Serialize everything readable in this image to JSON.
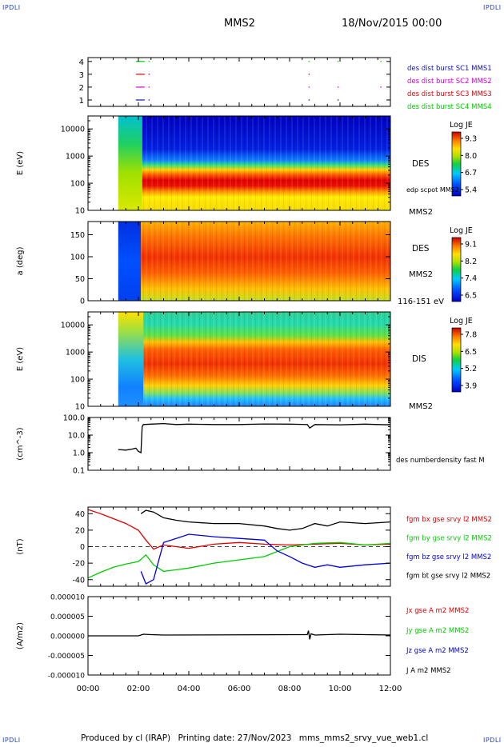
{
  "corners": {
    "tl": "IPDLI",
    "tr": "IPDLI",
    "bl": "IPDLI",
    "br": "IPDLI"
  },
  "header": {
    "spacecraft": "MMS2",
    "date": "18/Nov/2015 00:00"
  },
  "footer": {
    "produced": "Produced by cl (IRAP)",
    "printing": "Printing date: 27/Nov/2023",
    "file": "mms_mms2_srvy_vue_web1.cl"
  },
  "colors": {
    "red": "#e00000",
    "green": "#00cc00",
    "blue": "#0000e0",
    "magenta": "#d000d0",
    "black": "#000000",
    "legend_blue": "#1010c0"
  },
  "chart_data": [
    {
      "type": "line",
      "panel": "burst-availability",
      "ylim": [
        0.5,
        4.3
      ],
      "yticks": [
        "4",
        "3",
        "2",
        "1"
      ],
      "legend": [
        {
          "label": "des dist burst SC1 MMS1",
          "color": "#1010c0"
        },
        {
          "label": "des dist burst SC2 MMS2",
          "color": "#d000d0"
        },
        {
          "label": "des dist burst SC3 MMS3",
          "color": "#e00000"
        },
        {
          "label": "des dist burst SC4 MMS4",
          "color": "#00cc00"
        }
      ],
      "series": [
        {
          "level": 4,
          "color": "#00cc00",
          "intervals": [
            [
              1.9,
              2.25
            ],
            [
              2.4,
              2.45
            ],
            [
              8.75,
              8.8
            ],
            [
              9.9,
              9.95
            ],
            [
              11.6,
              11.65
            ]
          ]
        },
        {
          "level": 3,
          "color": "#e00000",
          "intervals": [
            [
              1.9,
              2.25
            ],
            [
              2.4,
              2.45
            ],
            [
              8.75,
              8.8
            ]
          ]
        },
        {
          "level": 2,
          "color": "#d000d0",
          "intervals": [
            [
              1.9,
              2.25
            ],
            [
              2.4,
              2.45
            ],
            [
              8.75,
              8.8
            ],
            [
              9.9,
              9.95
            ],
            [
              11.6,
              11.65
            ]
          ]
        },
        {
          "level": 1,
          "color": "#1010c0",
          "intervals": [
            [
              1.9,
              2.25
            ],
            [
              2.4,
              2.45
            ],
            [
              8.75,
              8.8
            ],
            [
              9.9,
              9.95
            ]
          ]
        }
      ]
    },
    {
      "type": "heatmap",
      "panel": "des-energy",
      "ylabel": "E (eV)",
      "ylog": true,
      "ylim": [
        10,
        30000
      ],
      "yticks": [
        "10000",
        "1000",
        "100",
        "10"
      ],
      "label": "DES",
      "sc": "MMS2",
      "overlay_label": "edp scpot MMS2",
      "colorbar": {
        "title": "Log JE",
        "ticks": [
          "9.3",
          "8.0",
          "6.7",
          "5.4"
        ],
        "min": 5.4,
        "max": 9.3
      }
    },
    {
      "type": "heatmap",
      "panel": "des-pitch-angle",
      "ylabel": "a (deg)",
      "ylim": [
        0,
        180
      ],
      "yticks": [
        "150",
        "100",
        "50",
        "0"
      ],
      "label": "DES",
      "sc": "MMS2",
      "energy_range": "116-151 eV",
      "colorbar": {
        "title": "Log JE",
        "ticks": [
          "9.1",
          "8.2",
          "7.4",
          "6.5"
        ],
        "min": 6.5,
        "max": 9.1
      }
    },
    {
      "type": "heatmap",
      "panel": "dis-energy",
      "ylabel": "E (eV)",
      "ylog": true,
      "ylim": [
        10,
        30000
      ],
      "yticks": [
        "10000",
        "1000",
        "100",
        "10"
      ],
      "label": "DIS",
      "sc": "MMS2",
      "colorbar": {
        "title": "Log JE",
        "ticks": [
          "7.8",
          "6.5",
          "5.2",
          "3.9"
        ],
        "min": 3.9,
        "max": 7.8
      }
    },
    {
      "type": "line",
      "panel": "density",
      "ylabel": "(cm^-3)",
      "ylog": true,
      "ylim": [
        0.1,
        100
      ],
      "yticks": [
        "100.0",
        "10.0",
        "1.0",
        "0.1"
      ],
      "legend": [
        {
          "label": "des numberdensity fast M",
          "color": "#000000"
        }
      ],
      "series": [
        {
          "color": "#000000",
          "x": [
            1.2,
            1.5,
            1.75,
            1.9,
            2.0,
            2.1,
            2.15,
            2.2,
            2.5,
            3.0,
            3.5,
            4.0,
            5.0,
            6.0,
            7.0,
            8.0,
            8.7,
            8.8,
            9.0,
            10.0,
            11.0,
            11.5,
            12.0
          ],
          "y": [
            1.5,
            1.4,
            1.6,
            1.8,
            1.2,
            1.0,
            30,
            40,
            42,
            45,
            40,
            42,
            40,
            40,
            43,
            42,
            40,
            25,
            40,
            38,
            42,
            40,
            38
          ]
        }
      ]
    },
    {
      "type": "line",
      "panel": "magnetic-field",
      "ylabel": "(nT)",
      "ylim": [
        -48,
        48
      ],
      "yticks": [
        "40",
        "20",
        "0",
        "-20",
        "-40"
      ],
      "legend": [
        {
          "label": "fgm bx gse srvy l2 MMS2",
          "color": "#e00000"
        },
        {
          "label": "fgm by gse srvy l2 MMS2",
          "color": "#00cc00"
        },
        {
          "label": "fgm bz gse srvy l2 MMS2",
          "color": "#0000e0"
        },
        {
          "label": "fgm bt gse srvy l2 MMS2",
          "color": "#000000"
        }
      ],
      "series": [
        {
          "name": "bx",
          "color": "#e00000",
          "x": [
            0,
            0.5,
            1.0,
            1.5,
            2.0,
            2.3,
            2.6,
            3.0,
            3.5,
            4.0,
            5.0,
            6.0,
            7.0,
            8.0,
            9.0,
            10.0,
            11.0,
            12.0
          ],
          "y": [
            45,
            40,
            34,
            28,
            20,
            8,
            -3,
            2,
            0,
            -2,
            3,
            5,
            3,
            2,
            3,
            4,
            2,
            3
          ]
        },
        {
          "name": "by",
          "color": "#00cc00",
          "x": [
            0,
            0.5,
            1.0,
            1.5,
            2.0,
            2.3,
            2.6,
            3.0,
            3.5,
            4.0,
            5.0,
            6.0,
            7.0,
            8.0,
            9.0,
            10.0,
            11.0,
            12.0
          ],
          "y": [
            -38,
            -31,
            -25,
            -21,
            -18,
            -10,
            -22,
            -30,
            -28,
            -26,
            -20,
            -16,
            -12,
            0,
            4,
            5,
            2,
            4
          ]
        },
        {
          "name": "bz",
          "color": "#0000e0",
          "x": [
            2.1,
            2.3,
            2.6,
            3.0,
            3.5,
            4.0,
            5.0,
            6.0,
            7.0,
            7.5,
            8.0,
            8.5,
            9.0,
            9.5,
            10.0,
            11.0,
            12.0
          ],
          "y": [
            -30,
            -45,
            -40,
            5,
            10,
            15,
            12,
            10,
            8,
            -5,
            -12,
            -20,
            -25,
            -22,
            -25,
            -22,
            -20
          ]
        },
        {
          "name": "bt",
          "color": "#000000",
          "x": [
            2.1,
            2.3,
            2.6,
            3.0,
            3.5,
            4.0,
            5.0,
            6.0,
            7.0,
            7.5,
            8.0,
            8.5,
            9.0,
            9.5,
            10.0,
            11.0,
            12.0
          ],
          "y": [
            40,
            44,
            42,
            35,
            32,
            30,
            28,
            28,
            25,
            22,
            20,
            22,
            28,
            25,
            30,
            28,
            30
          ]
        }
      ]
    },
    {
      "type": "line",
      "panel": "current-density",
      "ylabel": "(A/m2)",
      "ylim": [
        -1e-05,
        1e-05
      ],
      "yticks": [
        "0.000010",
        "0.000005",
        "0.000000",
        "-0.000005",
        "-0.000010"
      ],
      "legend": [
        {
          "label": "Jx gse A m2 MMS2",
          "color": "#e00000"
        },
        {
          "label": "Jy gse A m2 MMS2",
          "color": "#00cc00"
        },
        {
          "label": "Jz gse A m2 MMS2",
          "color": "#0000e0"
        },
        {
          "label": "J A m2 MMS2",
          "color": "#000000"
        }
      ],
      "series": [
        {
          "name": "J",
          "color": "#000000",
          "x": [
            0,
            2.0,
            2.2,
            2.5,
            3.0,
            8.7,
            8.75,
            8.8,
            8.85,
            9.0,
            10.0,
            12.0
          ],
          "y": [
            0,
            0,
            4e-07,
            3e-07,
            2e-07,
            3e-07,
            1.3e-06,
            -9e-07,
            5e-07,
            2e-07,
            4e-07,
            2e-07
          ]
        }
      ]
    }
  ],
  "xaxis": {
    "ticks": [
      "00:00",
      "02:00",
      "04:00",
      "06:00",
      "08:00",
      "10:00",
      "12:00"
    ],
    "xlim": [
      0,
      12
    ]
  }
}
